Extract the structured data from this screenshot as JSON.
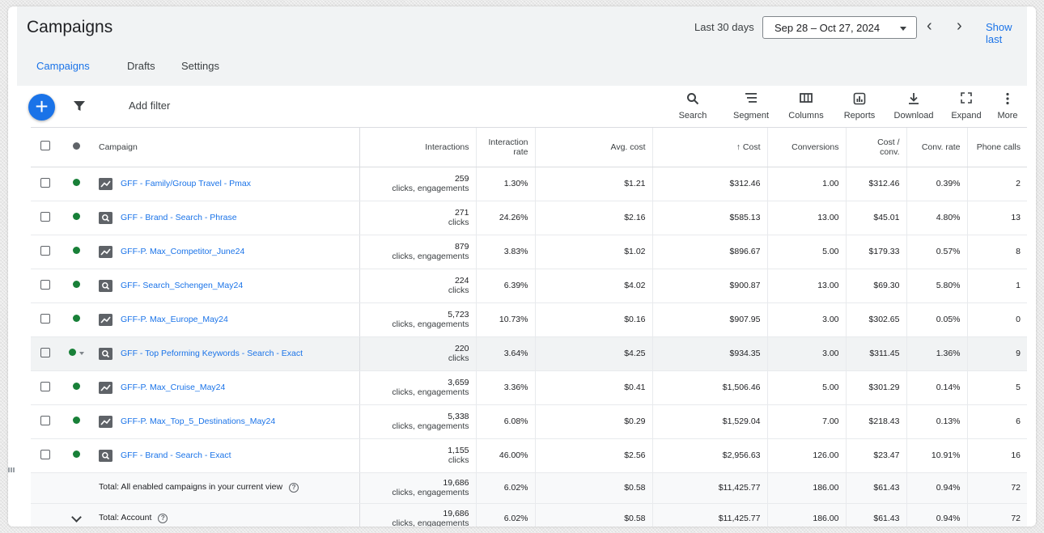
{
  "header": {
    "title": "Campaigns",
    "range_label": "Last 30 days",
    "date_range": "Sep 28 – Oct 27, 2024",
    "show_last": "Show last"
  },
  "tabs": [
    {
      "label": "Campaigns",
      "active": true
    },
    {
      "label": "Drafts",
      "active": false
    },
    {
      "label": "Settings",
      "active": false
    }
  ],
  "toolbar": {
    "add_filter": "Add filter",
    "tools": [
      {
        "label": "Search",
        "icon": "search-icon"
      },
      {
        "label": "Segment",
        "icon": "segment-icon"
      },
      {
        "label": "Columns",
        "icon": "columns-icon"
      },
      {
        "label": "Reports",
        "icon": "reports-icon"
      },
      {
        "label": "Download",
        "icon": "download-icon"
      },
      {
        "label": "Expand",
        "icon": "expand-icon"
      },
      {
        "label": "More",
        "icon": "more-vert-icon"
      }
    ]
  },
  "table": {
    "headers": {
      "campaign": "Campaign",
      "interactions": "Interactions",
      "interaction_rate_1": "Interaction",
      "interaction_rate_2": "rate",
      "avg_cost": "Avg. cost",
      "cost": "↑ Cost",
      "conversions": "Conversions",
      "cost_conv_1": "Cost /",
      "cost_conv_2": "conv.",
      "conv_rate": "Conv. rate",
      "phone_calls": "Phone calls"
    },
    "rows": [
      {
        "type": "pmax",
        "name": "GFF - Family/Group Travel - Pmax",
        "interactions": "259",
        "interaction_types": "clicks, engagements",
        "rate": "1.30%",
        "avg_cost": "$1.21",
        "cost": "$312.46",
        "conversions": "1.00",
        "cost_conv": "$312.46",
        "conv_rate": "0.39%",
        "phone_calls": "2"
      },
      {
        "type": "search",
        "name": "GFF - Brand - Search - Phrase",
        "interactions": "271",
        "interaction_types": "clicks",
        "rate": "24.26%",
        "avg_cost": "$2.16",
        "cost": "$585.13",
        "conversions": "13.00",
        "cost_conv": "$45.01",
        "conv_rate": "4.80%",
        "phone_calls": "13"
      },
      {
        "type": "pmax",
        "name": "GFF-P. Max_Competitor_June24",
        "interactions": "879",
        "interaction_types": "clicks, engagements",
        "rate": "3.83%",
        "avg_cost": "$1.02",
        "cost": "$896.67",
        "conversions": "5.00",
        "cost_conv": "$179.33",
        "conv_rate": "0.57%",
        "phone_calls": "8"
      },
      {
        "type": "search",
        "name": "GFF- Search_Schengen_May24",
        "interactions": "224",
        "interaction_types": "clicks",
        "rate": "6.39%",
        "avg_cost": "$4.02",
        "cost": "$900.87",
        "conversions": "13.00",
        "cost_conv": "$69.30",
        "conv_rate": "5.80%",
        "phone_calls": "1"
      },
      {
        "type": "pmax",
        "name": "GFF-P. Max_Europe_May24",
        "interactions": "5,723",
        "interaction_types": "clicks, engagements",
        "rate": "10.73%",
        "avg_cost": "$0.16",
        "cost": "$907.95",
        "conversions": "3.00",
        "cost_conv": "$302.65",
        "conv_rate": "0.05%",
        "phone_calls": "0"
      },
      {
        "type": "search",
        "name": "GFF - Top Peforming Keywords - Search - Exact",
        "interactions": "220",
        "interaction_types": "clicks",
        "rate": "3.64%",
        "avg_cost": "$4.25",
        "cost": "$934.35",
        "conversions": "3.00",
        "cost_conv": "$311.45",
        "conv_rate": "1.36%",
        "phone_calls": "9",
        "highlighted": true
      },
      {
        "type": "pmax",
        "name": "GFF-P. Max_Cruise_May24",
        "interactions": "3,659",
        "interaction_types": "clicks, engagements",
        "rate": "3.36%",
        "avg_cost": "$0.41",
        "cost": "$1,506.46",
        "conversions": "5.00",
        "cost_conv": "$301.29",
        "conv_rate": "0.14%",
        "phone_calls": "5"
      },
      {
        "type": "pmax",
        "name": "GFF-P. Max_Top_5_Destinations_May24",
        "interactions": "5,338",
        "interaction_types": "clicks, engagements",
        "rate": "6.08%",
        "avg_cost": "$0.29",
        "cost": "$1,529.04",
        "conversions": "7.00",
        "cost_conv": "$218.43",
        "conv_rate": "0.13%",
        "phone_calls": "6"
      },
      {
        "type": "search",
        "name": "GFF - Brand - Search - Exact",
        "interactions": "1,155",
        "interaction_types": "clicks",
        "rate": "46.00%",
        "avg_cost": "$2.56",
        "cost": "$2,956.63",
        "conversions": "126.00",
        "cost_conv": "$23.47",
        "conv_rate": "10.91%",
        "phone_calls": "16"
      }
    ],
    "totals": [
      {
        "label": "Total: All enabled campaigns in your current view",
        "interactions": "19,686",
        "interaction_types": "clicks, engagements",
        "rate": "6.02%",
        "avg_cost": "$0.58",
        "cost": "$11,425.77",
        "conversions": "186.00",
        "cost_conv": "$61.43",
        "conv_rate": "0.94%",
        "phone_calls": "72"
      },
      {
        "label": "Total: Account",
        "interactions": "19,686",
        "interaction_types": "clicks, engagements",
        "rate": "6.02%",
        "avg_cost": "$0.58",
        "cost": "$11,425.77",
        "conversions": "186.00",
        "cost_conv": "$61.43",
        "conv_rate": "0.94%",
        "phone_calls": "72"
      }
    ]
  },
  "colors": {
    "accent": "#1a73e8",
    "status_enabled": "#188038",
    "header_bg": "#f1f3f4"
  }
}
